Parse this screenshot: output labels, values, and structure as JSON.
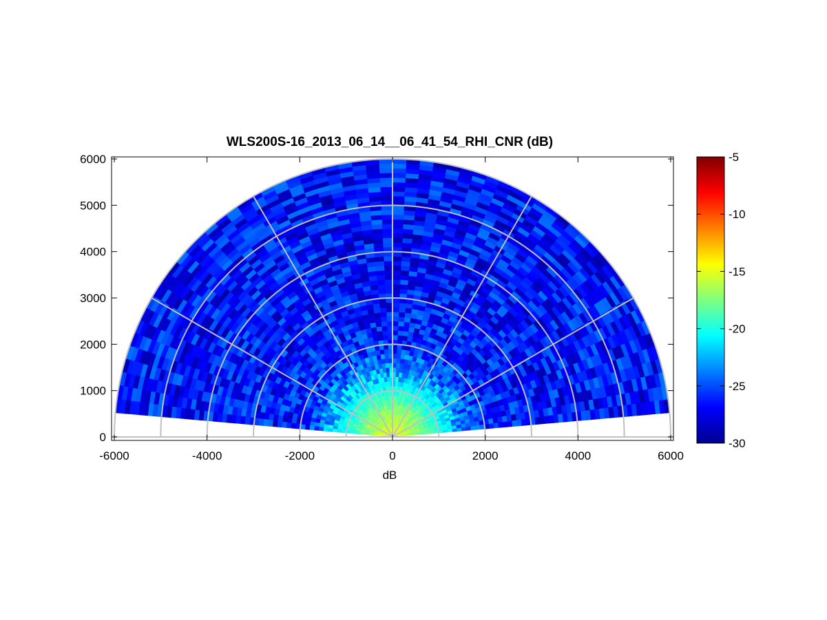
{
  "chart_data": {
    "type": "heatmap",
    "plot_style": "polar RHI scan (half-disk)",
    "title": "WLS200S-16_2013_06_14__06_41_54_RHI_CNR (dB)",
    "xlabel": "dB",
    "ylabel": "",
    "xlim": [
      -6000,
      6000
    ],
    "ylim": [
      0,
      6000
    ],
    "xticks": [
      "-6000",
      "-4000",
      "-2000",
      "0",
      "2000",
      "4000",
      "6000"
    ],
    "yticks": [
      "0",
      "1000",
      "2000",
      "3000",
      "4000",
      "5000",
      "6000"
    ],
    "range_rings": [
      1000,
      2000,
      3000,
      4000,
      5000,
      6000
    ],
    "radial_lines_deg": [
      0,
      30,
      60,
      90,
      120,
      150,
      180
    ],
    "min_elevation_deg": 5,
    "max_range": 6000,
    "colorbar": {
      "colormap": "jet",
      "min": -30,
      "max": -5,
      "ticks": [
        "-5",
        "-10",
        "-15",
        "-20",
        "-25",
        "-30"
      ]
    },
    "cnr_profile": {
      "range": [
        0,
        300,
        600,
        1000,
        1500,
        2000,
        3000,
        4000,
        6000
      ],
      "cnr_db": [
        -15,
        -16,
        -17.5,
        -20,
        -23.5,
        -26,
        -26.5,
        -26.5,
        -26.5
      ]
    },
    "colors": {
      "grid": "#c0c0c0",
      "axis": "#000000"
    }
  }
}
